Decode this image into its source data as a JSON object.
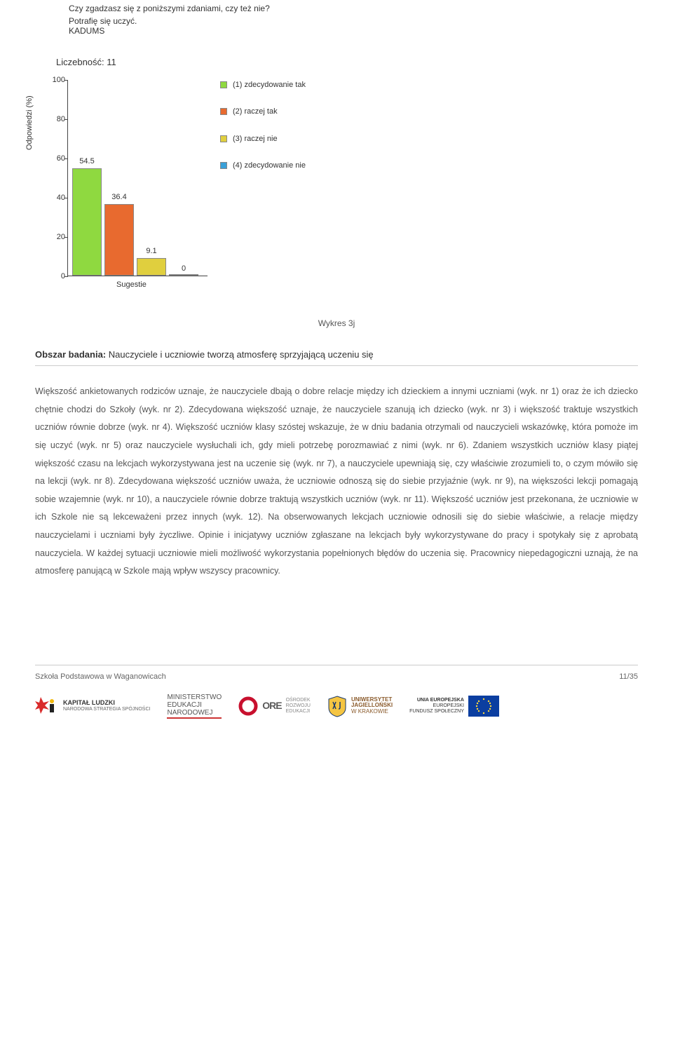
{
  "chart": {
    "question_line1": "Czy zgadzasz się z poniższymi zdaniami, czy też nie?",
    "question_line2": "Potrafię się uczyć.",
    "question_line3": "KADUMS",
    "count_label": "Liczebność: 11",
    "y_axis_label": "Odpowiedzi (%)",
    "x_category": "Sugestie",
    "ylim_max": 100,
    "yticks": [
      0,
      20,
      40,
      60,
      80,
      100
    ],
    "bars": [
      {
        "value": 54.5,
        "label": "54.5",
        "color": "#8fd940"
      },
      {
        "value": 36.4,
        "label": "36.4",
        "color": "#e86a2f"
      },
      {
        "value": 9.1,
        "label": "9.1",
        "color": "#e0cf3e"
      },
      {
        "value": 0,
        "label": "0",
        "color": "#3aa0d8"
      }
    ],
    "legend": [
      {
        "color": "#8fd940",
        "text": "(1) zdecydowanie tak"
      },
      {
        "color": "#e86a2f",
        "text": "(2) raczej tak"
      },
      {
        "color": "#e0cf3e",
        "text": "(3) raczej nie"
      },
      {
        "color": "#3aa0d8",
        "text": "(4) zdecydowanie nie"
      }
    ]
  },
  "caption": "Wykres 3j",
  "section_label": "Obszar badania:",
  "section_title": "Nauczyciele i uczniowie tworzą atmosferę sprzyjającą uczeniu się",
  "body": "Większość ankietowanych rodziców uznaje, że nauczyciele dbają o dobre relacje między ich dzieckiem a innymi uczniami (wyk. nr 1) oraz że ich dziecko chętnie chodzi do Szkoły (wyk. nr 2). Zdecydowana większość uznaje, że nauczyciele szanują ich dziecko (wyk. nr 3) i większość traktuje wszystkich uczniów równie dobrze (wyk. nr 4). Większość uczniów klasy szóstej wskazuje, że w dniu badania otrzymali od nauczycieli wskazówkę, która pomoże im się uczyć (wyk. nr 5) oraz nauczyciele wysłuchali ich, gdy mieli potrzebę porozmawiać z nimi (wyk. nr 6). Zdaniem wszystkich uczniów klasy piątej większość czasu na lekcjach wykorzystywana jest na uczenie się (wyk. nr 7), a nauczyciele upewniają się, czy właściwie zrozumieli to, o czym mówiło się na lekcji (wyk. nr 8). Zdecydowana większość uczniów uważa, że uczniowie odnoszą się do siebie przyjaźnie (wyk. nr 9), na większości lekcji pomagają sobie wzajemnie (wyk. nr 10), a nauczyciele równie dobrze traktują wszystkich uczniów (wyk. nr 11). Większość uczniów jest przekonana, że uczniowie w ich Szkole nie są lekceważeni przez innych (wyk. 12). Na obserwowanych lekcjach uczniowie odnosili się do siebie właściwie, a relacje między nauczycielami i uczniami były życzliwe. Opinie i inicjatywy uczniów zgłaszane na lekcjach były wykorzystywane do pracy i spotykały się z aprobatą nauczyciela. W każdej sytuacji uczniowie mieli możliwość wykorzystania popełnionych błędów do uczenia się. Pracownicy niepedagogiczni uznają, że na atmosferę panującą w Szkole mają wpływ wszyscy pracownicy.",
  "footer": {
    "left": "Szkoła Podstawowa w Waganowicach",
    "right": "11/35"
  },
  "logos": {
    "kapital": {
      "title": "KAPITAŁ LUDZKI",
      "sub": "NARODOWA STRATEGIA SPÓJNOŚCI"
    },
    "men": {
      "l1": "MINISTERSTWO",
      "l2": "EDUKACJI",
      "l3": "NARODOWEJ"
    },
    "ore": {
      "brand": "ORE",
      "l1": "OŚRODEK",
      "l2": "ROZWOJU",
      "l3": "EDUKACJI"
    },
    "uj": {
      "l1": "UNIWERSYTET",
      "l2": "JAGIELLOŃSKI",
      "l3": "W KRAKOWIE"
    },
    "eu": {
      "l1": "UNIA EUROPEJSKA",
      "l2": "EUROPEJSKI",
      "l3": "FUNDUSZ SPOŁECZNY"
    }
  },
  "colors": {
    "axis": "#444444",
    "text": "#333333",
    "body_text": "#555555"
  }
}
